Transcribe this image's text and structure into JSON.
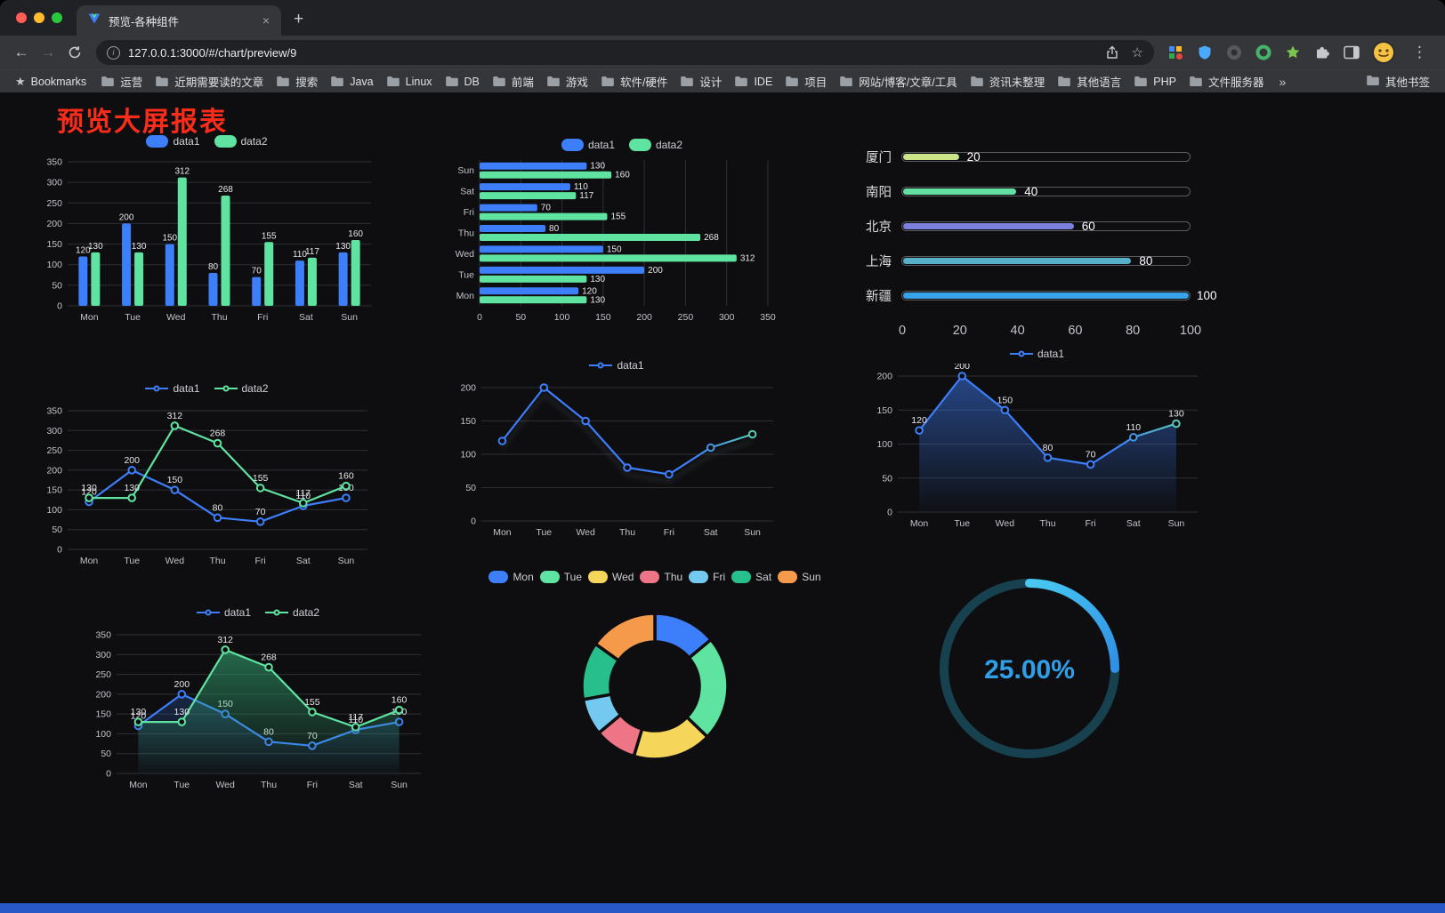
{
  "browser": {
    "tab_title": "预览-各种组件",
    "url": "127.0.0.1:3000/#/chart/preview/9",
    "bookmarks_label": "Bookmarks",
    "other_bookmarks_label": "其他书签",
    "overflow_chevron": "»",
    "bookmarks": [
      "运营",
      "近期需要读的文章",
      "搜索",
      "Java",
      "Linux",
      "DB",
      "前端",
      "游戏",
      "软件/硬件",
      "设计",
      "IDE",
      "项目",
      "网站/博客/文章/工具",
      "资讯未整理",
      "其他语言",
      "PHP",
      "文件服务器"
    ],
    "icons": {
      "back": "←",
      "forward": "→",
      "close": "×",
      "new_tab": "+",
      "menu": "⋮",
      "star": "☆",
      "bookmarks_star": "★",
      "info": "i"
    }
  },
  "page": {
    "title": "预览大屏报表",
    "title_color": "#fb2d1a"
  },
  "chart_data": [
    {
      "id": "grouped-bar",
      "type": "bar",
      "legend": {
        "marker": "rect",
        "items": [
          "data1",
          "data2"
        ]
      },
      "categories": [
        "Mon",
        "Tue",
        "Wed",
        "Thu",
        "Fri",
        "Sat",
        "Sun"
      ],
      "series": [
        {
          "name": "data1",
          "color": "#3d7efb",
          "values": [
            120,
            200,
            150,
            80,
            70,
            110,
            130
          ]
        },
        {
          "name": "data2",
          "color": "#5fe3a1",
          "values": [
            130,
            130,
            312,
            268,
            155,
            117,
            160
          ]
        }
      ],
      "ylim": [
        0,
        350
      ],
      "yticks": [
        0,
        50,
        100,
        150,
        200,
        250,
        300,
        350
      ]
    },
    {
      "id": "horizontal-bar",
      "type": "hbar",
      "legend": {
        "marker": "rect",
        "items": [
          "data1",
          "data2"
        ]
      },
      "categories": [
        "Sun",
        "Sat",
        "Fri",
        "Thu",
        "Wed",
        "Tue",
        "Mon"
      ],
      "series": [
        {
          "name": "data1",
          "color": "#3d7efb",
          "values": [
            130,
            110,
            70,
            80,
            150,
            200,
            120
          ]
        },
        {
          "name": "data2",
          "color": "#5fe3a1",
          "values": [
            160,
            117,
            155,
            268,
            312,
            130,
            130
          ]
        }
      ],
      "xlim": [
        0,
        350
      ],
      "xticks": [
        0,
        50,
        100,
        150,
        200,
        250,
        300,
        350
      ]
    },
    {
      "id": "progress-bars",
      "type": "progress",
      "max": 100,
      "items": [
        {
          "label": "厦门",
          "value": 20,
          "color": "#cbe487"
        },
        {
          "label": "南阳",
          "value": 40,
          "color": "#63dfa4"
        },
        {
          "label": "北京",
          "value": 60,
          "color": "#7b80dd"
        },
        {
          "label": "上海",
          "value": 80,
          "color": "#56b0c8"
        },
        {
          "label": "新疆",
          "value": 100,
          "color": "#38a3e8"
        }
      ],
      "xticks": [
        0,
        20,
        40,
        60,
        80,
        100
      ]
    },
    {
      "id": "line-two-series",
      "type": "line",
      "legend": {
        "marker": "line",
        "items": [
          "data1",
          "data2"
        ]
      },
      "categories": [
        "Mon",
        "Tue",
        "Wed",
        "Thu",
        "Fri",
        "Sat",
        "Sun"
      ],
      "series": [
        {
          "name": "data1",
          "color": "#3d7efb",
          "values": [
            120,
            200,
            150,
            80,
            70,
            110,
            130
          ],
          "labels": true
        },
        {
          "name": "data2",
          "color": "#5fe3a1",
          "values": [
            130,
            130,
            312,
            268,
            155,
            117,
            160
          ],
          "labels": true
        }
      ],
      "ylim": [
        0,
        350
      ],
      "yticks": [
        0,
        50,
        100,
        150,
        200,
        250,
        300,
        350
      ]
    },
    {
      "id": "line-gradient",
      "type": "line",
      "legend": {
        "marker": "line",
        "items": [
          "data1"
        ]
      },
      "categories": [
        "Mon",
        "Tue",
        "Wed",
        "Thu",
        "Fri",
        "Sat",
        "Sun"
      ],
      "series": [
        {
          "name": "data1",
          "color": "#3d7efb",
          "gradient_to": "#5fe3a1",
          "values": [
            120,
            200,
            150,
            80,
            70,
            110,
            130
          ],
          "labels": false,
          "shadow": true
        }
      ],
      "ylim": [
        0,
        200
      ],
      "yticks": [
        0,
        50,
        100,
        150,
        200
      ]
    },
    {
      "id": "line-area",
      "type": "line",
      "legend": {
        "marker": "line",
        "items": [
          "data1"
        ]
      },
      "categories": [
        "Mon",
        "Tue",
        "Wed",
        "Thu",
        "Fri",
        "Sat",
        "Sun"
      ],
      "series": [
        {
          "name": "data1",
          "color": "#3d7efb",
          "gradient_to": "#5fe3a1",
          "values": [
            120,
            200,
            150,
            80,
            70,
            110,
            130
          ],
          "labels": true,
          "area": "#3d7efb",
          "area_opacity": 0.5
        }
      ],
      "ylim": [
        0,
        200
      ],
      "yticks": [
        0,
        50,
        100,
        150,
        200
      ]
    },
    {
      "id": "line-two-series-area",
      "type": "line",
      "legend": {
        "marker": "line",
        "items": [
          "data1",
          "data2"
        ]
      },
      "categories": [
        "Mon",
        "Tue",
        "Wed",
        "Thu",
        "Fri",
        "Sat",
        "Sun"
      ],
      "series": [
        {
          "name": "data1",
          "color": "#3d7efb",
          "values": [
            120,
            200,
            150,
            80,
            70,
            110,
            130
          ],
          "labels": true,
          "area": "#3d7efb",
          "area_opacity": 0.22
        },
        {
          "name": "data2",
          "color": "#5fe3a1",
          "values": [
            130,
            130,
            312,
            268,
            155,
            117,
            160
          ],
          "labels": true,
          "area": "#35b37c",
          "area_opacity": 0.55
        }
      ],
      "ylim": [
        0,
        350
      ],
      "yticks": [
        0,
        50,
        100,
        150,
        200,
        250,
        300,
        350
      ]
    },
    {
      "id": "donut-pie",
      "type": "pie",
      "inner_ratio": 0.61,
      "legend": {
        "marker": "rect",
        "items": [
          "Mon",
          "Tue",
          "Wed",
          "Thu",
          "Fri",
          "Sat",
          "Sun"
        ]
      },
      "slices": [
        {
          "name": "Mon",
          "value": 120,
          "color": "#3d7efb"
        },
        {
          "name": "Tue",
          "value": 200,
          "color": "#5fe3a1"
        },
        {
          "name": "Wed",
          "value": 150,
          "color": "#f5d55a"
        },
        {
          "name": "Thu",
          "value": 80,
          "color": "#ee7585"
        },
        {
          "name": "Fri",
          "value": 70,
          "color": "#74c9f0"
        },
        {
          "name": "Sat",
          "value": 110,
          "color": "#27c08d"
        },
        {
          "name": "Sun",
          "value": 130,
          "color": "#f59a4a"
        }
      ]
    },
    {
      "id": "gauge-progress",
      "type": "gauge",
      "value": 25,
      "label": "25.00%",
      "color": "#2f8fe4",
      "color2": "#49c9f2",
      "track_color": "#17414f",
      "text_color": "#2f9fe8"
    }
  ]
}
